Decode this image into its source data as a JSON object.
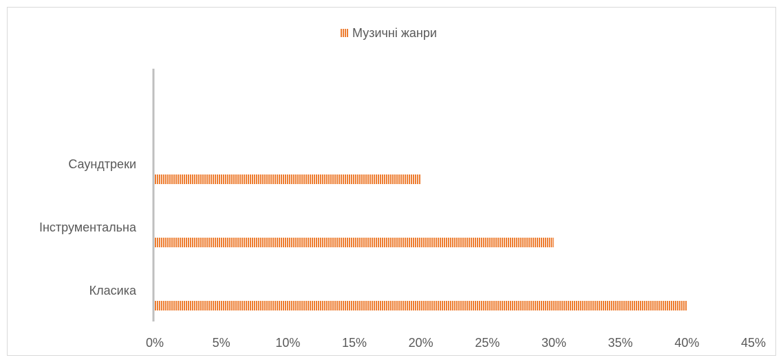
{
  "chart_data": {
    "type": "bar",
    "orientation": "horizontal",
    "categories": [
      "Класика",
      "Інструментальна",
      "Саундтреки"
    ],
    "series": [
      {
        "name": "Музичні жанри",
        "color": "#ed7d31",
        "values": [
          40,
          30,
          20
        ]
      }
    ],
    "xlim": [
      0,
      45
    ],
    "xticks": [
      {
        "value": 0,
        "label": "0%"
      },
      {
        "value": 5,
        "label": "5%"
      },
      {
        "value": 10,
        "label": "10%"
      },
      {
        "value": 15,
        "label": "15%"
      },
      {
        "value": 20,
        "label": "20%"
      },
      {
        "value": 25,
        "label": "25%"
      },
      {
        "value": 30,
        "label": "30%"
      },
      {
        "value": 35,
        "label": "35%"
      },
      {
        "value": 40,
        "label": "40%"
      },
      {
        "value": 45,
        "label": "45%"
      }
    ],
    "legend": "top",
    "grid": false
  }
}
